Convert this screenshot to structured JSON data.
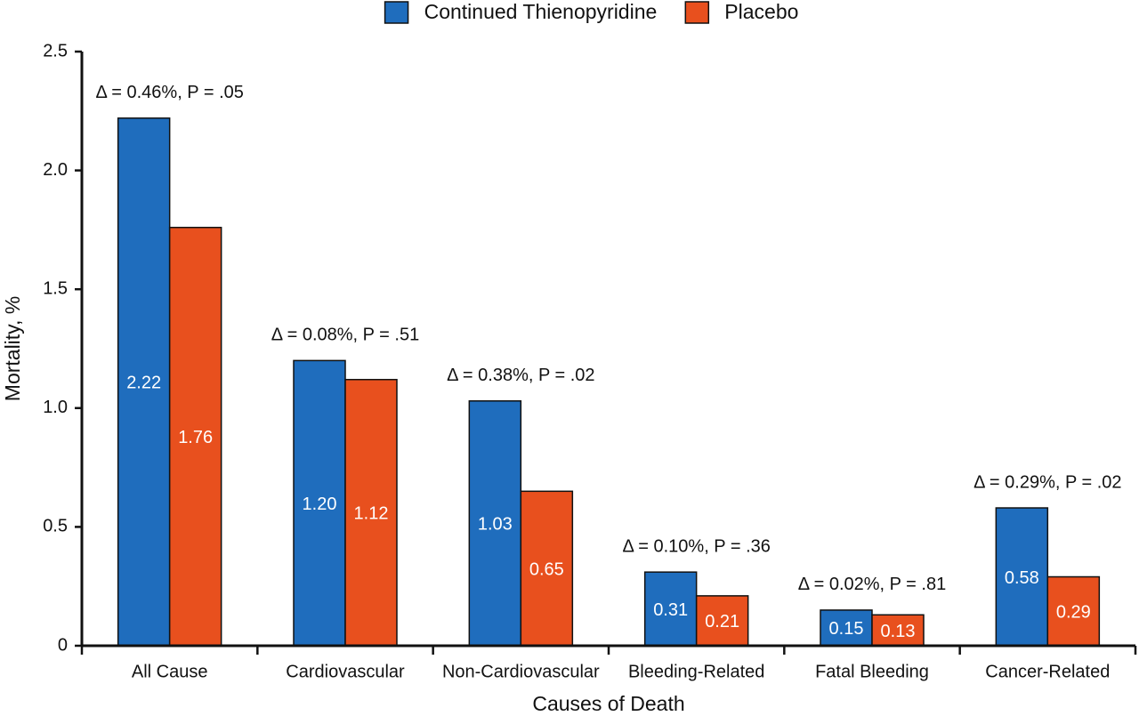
{
  "chart_data": {
    "type": "bar",
    "x_label": "Causes of Death",
    "y_label": "Mortality, %",
    "categories": [
      "All Cause",
      "Cardiovascular",
      "Non-Cardiovascular",
      "Bleeding-Related",
      "Fatal Bleeding",
      "Cancer-Related"
    ],
    "series": [
      {
        "name": "Continued Thienopyridine",
        "color": "#1f6dbd",
        "values": [
          2.22,
          1.2,
          1.03,
          0.31,
          0.15,
          0.58
        ],
        "value_labels": [
          "2.22",
          "1.20",
          "1.03",
          "0.31",
          "0.15",
          "0.58"
        ]
      },
      {
        "name": "Placebo",
        "color": "#e8501e",
        "values": [
          1.76,
          1.12,
          0.65,
          0.21,
          0.13,
          0.29
        ],
        "value_labels": [
          "1.76",
          "1.12",
          "0.65",
          "0.21",
          "0.13",
          "0.29"
        ]
      }
    ],
    "annotations": [
      "Δ = 0.46%, P = .05",
      "Δ = 0.08%, P = .51",
      "Δ = 0.38%, P = .02",
      "Δ = 0.10%, P = .36",
      "Δ = 0.02%, P = .81",
      "Δ = 0.29%, P = .02"
    ],
    "ylim": [
      0,
      2.5
    ],
    "yticks": [
      0,
      0.5,
      {
        "value": 1,
        "label": "1.0"
      },
      1.5,
      {
        "value": 2,
        "label": "2.0"
      },
      2.5
    ],
    "legend": "top",
    "grid": false
  }
}
